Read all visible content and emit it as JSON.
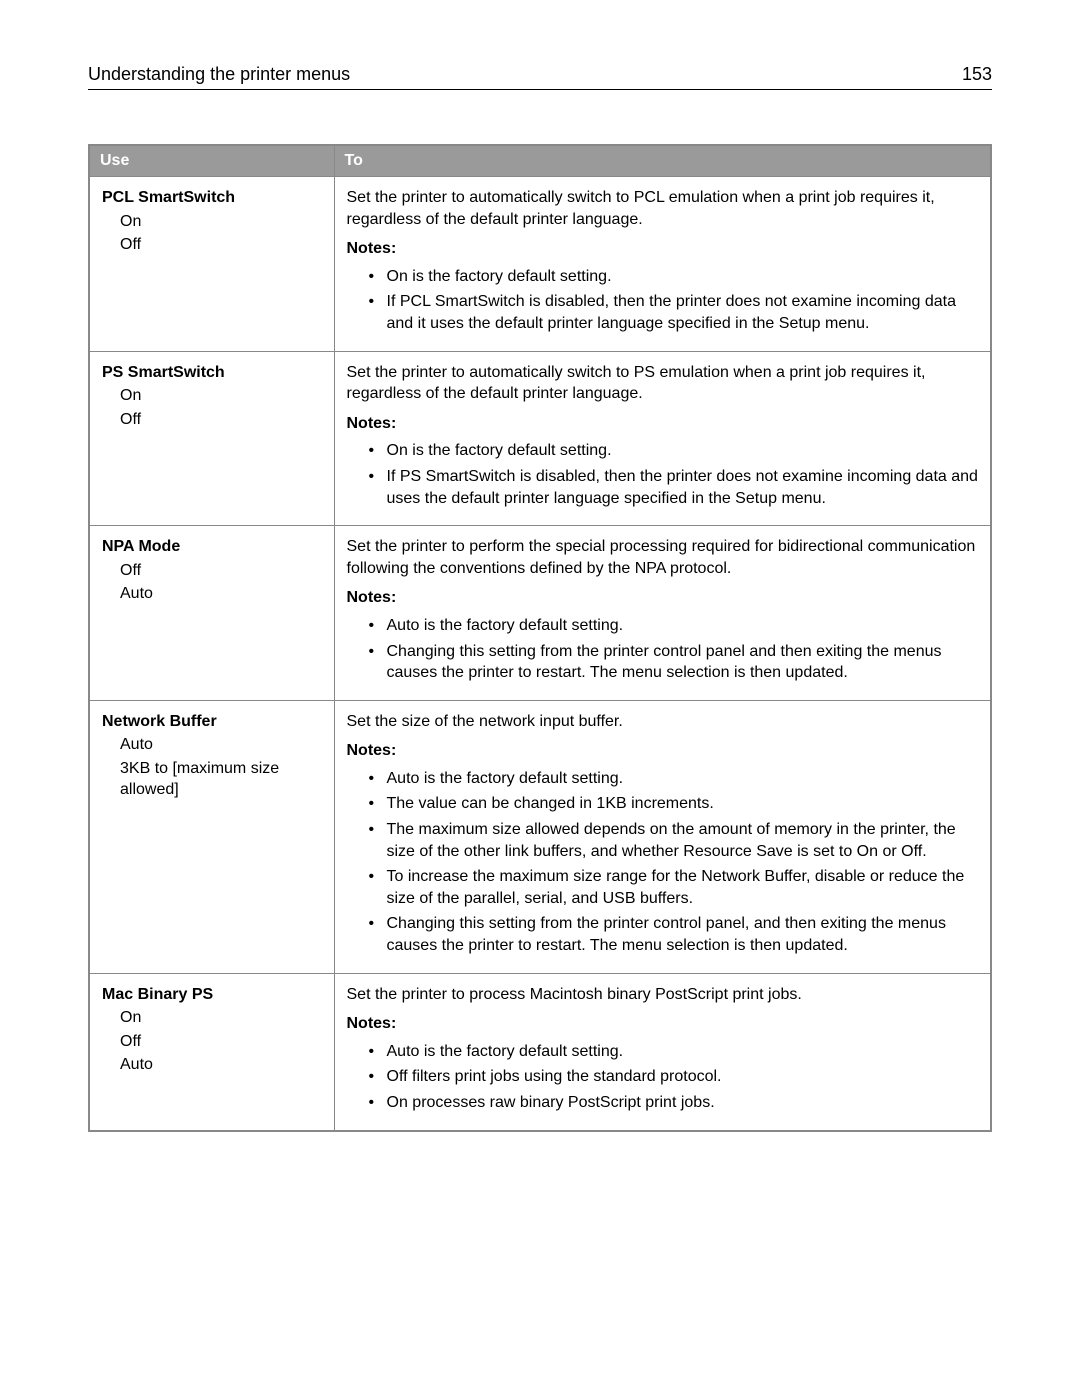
{
  "header": {
    "title": "Understanding the printer menus",
    "page_number": "153"
  },
  "table": {
    "columns": {
      "use": "Use",
      "to": "To"
    },
    "notes_label": "Notes:",
    "rows": [
      {
        "name": "PCL SmartSwitch",
        "options": [
          "On",
          "Off"
        ],
        "desc": "Set the printer to automatically switch to PCL emulation when a print job requires it, regardless of the default printer language.",
        "notes": [
          "On is the factory default setting.",
          "If PCL SmartSwitch is disabled, then the printer does not examine incoming data and it uses the default printer language specified in the Setup menu."
        ]
      },
      {
        "name": "PS SmartSwitch",
        "options": [
          "On",
          "Off"
        ],
        "desc": "Set the printer to automatically switch to PS emulation when a print job requires it, regardless of the default printer language.",
        "notes": [
          "On is the factory default setting.",
          "If PS SmartSwitch is disabled, then the printer does not examine incoming data and uses the default printer language specified in the Setup menu."
        ]
      },
      {
        "name": "NPA Mode",
        "options": [
          "Off",
          "Auto"
        ],
        "desc": "Set the printer to perform the special processing required for bidirectional communication following the conventions defined by the NPA protocol.",
        "notes": [
          "Auto is the factory default setting.",
          "Changing this setting from the printer control panel and then exiting the menus causes the printer to restart. The menu selection is then updated."
        ]
      },
      {
        "name": "Network Buffer",
        "options": [
          "Auto",
          "3KB to [maximum size allowed]"
        ],
        "desc": "Set the size of the network input buffer.",
        "notes": [
          "Auto is the factory default setting.",
          "The value can be changed in 1KB increments.",
          "The maximum size allowed depends on the amount of memory in the printer, the size of the other link buffers, and whether Resource Save is set to On or Off.",
          "To increase the maximum size range for the Network Buffer, disable or reduce the size of the parallel, serial, and USB buffers.",
          "Changing this setting from the printer control panel, and then exiting the menus causes the printer to restart. The menu selection is then updated."
        ]
      },
      {
        "name": "Mac Binary PS",
        "options": [
          "On",
          "Off",
          "Auto"
        ],
        "desc": "Set the printer to process Macintosh binary PostScript print jobs.",
        "notes": [
          "Auto is the factory default setting.",
          "Off filters print jobs using the standard protocol.",
          "On processes raw binary PostScript print jobs."
        ]
      }
    ]
  }
}
